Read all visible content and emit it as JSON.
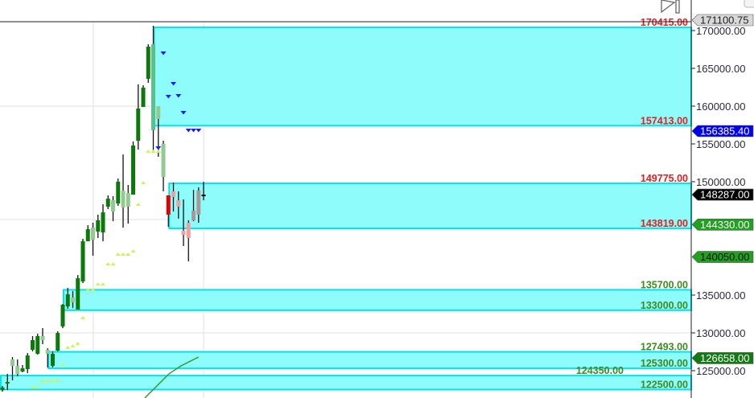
{
  "chart_data": {
    "type": "candlestick",
    "title": "",
    "xlabel": "",
    "ylabel": "",
    "ylim": [
      121000,
      172000
    ],
    "grid": true,
    "y_ticks": [
      "170000.00",
      "165000.00",
      "160000.00",
      "155000.00",
      "150000.00",
      "135000.00",
      "130000.00",
      "125000.00"
    ],
    "y_tick_values": [
      170000,
      165000,
      160000,
      155000,
      150000,
      135000,
      130000,
      125000
    ],
    "grid_y_values": [
      160000,
      145000,
      130000
    ],
    "candles": [
      {
        "o": 122440,
        "h": 122970,
        "l": 122230,
        "c": 122760,
        "color": "up"
      },
      {
        "o": 123290,
        "h": 124570,
        "l": 122440,
        "c": 123500,
        "color": "up"
      },
      {
        "o": 126480,
        "h": 126800,
        "l": 123720,
        "c": 125630,
        "color": "light"
      },
      {
        "o": 125630,
        "h": 126480,
        "l": 124250,
        "c": 124570,
        "color": "light"
      },
      {
        "o": 124890,
        "h": 125740,
        "l": 124780,
        "c": 125310,
        "color": "up"
      },
      {
        "o": 125210,
        "h": 127330,
        "l": 124670,
        "c": 127010,
        "color": "up"
      },
      {
        "o": 127760,
        "h": 129570,
        "l": 127550,
        "c": 129040,
        "color": "up"
      },
      {
        "o": 127230,
        "h": 129890,
        "l": 127120,
        "c": 129570,
        "color": "up"
      },
      {
        "o": 129570,
        "h": 130630,
        "l": 128500,
        "c": 129040,
        "color": "light"
      },
      {
        "o": 127760,
        "h": 127970,
        "l": 125420,
        "c": 127230,
        "color": "light"
      },
      {
        "o": 125630,
        "h": 127550,
        "l": 125420,
        "c": 127230,
        "color": "up"
      },
      {
        "o": 127650,
        "h": 130210,
        "l": 127550,
        "c": 129990,
        "color": "up"
      },
      {
        "o": 130850,
        "h": 133820,
        "l": 130630,
        "c": 133720,
        "color": "up"
      },
      {
        "o": 133500,
        "h": 135950,
        "l": 133190,
        "c": 135100,
        "color": "up"
      },
      {
        "o": 134680,
        "h": 135530,
        "l": 133290,
        "c": 134040,
        "color": "light"
      },
      {
        "o": 133080,
        "h": 137650,
        "l": 133080,
        "c": 137230,
        "color": "up"
      },
      {
        "o": 136800,
        "h": 142440,
        "l": 136590,
        "c": 142120,
        "color": "up"
      },
      {
        "o": 142120,
        "h": 144250,
        "l": 142120,
        "c": 143720,
        "color": "up"
      },
      {
        "o": 143930,
        "h": 144570,
        "l": 140210,
        "c": 142340,
        "color": "light"
      },
      {
        "o": 143400,
        "h": 145640,
        "l": 142550,
        "c": 144890,
        "color": "up"
      },
      {
        "o": 143290,
        "h": 147020,
        "l": 142120,
        "c": 145950,
        "color": "up"
      },
      {
        "o": 146700,
        "h": 148190,
        "l": 146380,
        "c": 147760,
        "color": "up"
      },
      {
        "o": 147550,
        "h": 148080,
        "l": 144780,
        "c": 146060,
        "color": "light"
      },
      {
        "o": 147120,
        "h": 150420,
        "l": 146800,
        "c": 150000,
        "color": "up"
      },
      {
        "o": 148830,
        "h": 153610,
        "l": 143930,
        "c": 146590,
        "color": "light"
      },
      {
        "o": 148510,
        "h": 149570,
        "l": 144460,
        "c": 146700,
        "color": "light"
      },
      {
        "o": 148290,
        "h": 155320,
        "l": 148290,
        "c": 154790,
        "color": "up"
      },
      {
        "o": 155420,
        "h": 162870,
        "l": 154250,
        "c": 159680,
        "color": "up"
      },
      {
        "o": 159890,
        "h": 162770,
        "l": 159890,
        "c": 162450,
        "color": "up"
      },
      {
        "o": 163620,
        "h": 168190,
        "l": 163080,
        "c": 167870,
        "color": "up"
      },
      {
        "o": 168190,
        "h": 170640,
        "l": 154150,
        "c": 156810,
        "color": "mid"
      },
      {
        "o": 160000,
        "h": 160000,
        "l": 153300,
        "c": 158300,
        "color": "light"
      },
      {
        "o": 155000,
        "h": 155420,
        "l": 148720,
        "c": 150640,
        "color": "light"
      },
      {
        "o": 148190,
        "h": 148190,
        "l": 144040,
        "c": 145640,
        "color": "red"
      },
      {
        "o": 148720,
        "h": 149890,
        "l": 146060,
        "c": 147980,
        "color": "pink"
      },
      {
        "o": 147550,
        "h": 148720,
        "l": 145100,
        "c": 146700,
        "color": "pink"
      },
      {
        "o": 143510,
        "h": 147660,
        "l": 141490,
        "c": 142970,
        "color": "pink"
      },
      {
        "o": 144570,
        "h": 144890,
        "l": 139460,
        "c": 142550,
        "color": "pink"
      },
      {
        "o": 144890,
        "h": 148930,
        "l": 144780,
        "c": 146170,
        "color": "gray"
      },
      {
        "o": 145640,
        "h": 149250,
        "l": 144570,
        "c": 148830,
        "color": "gray"
      },
      {
        "o": 148190,
        "h": 150000,
        "l": 147550,
        "c": 148290,
        "color": "black"
      }
    ],
    "candle_colors": {
      "up": "#0b7a0b",
      "light": "#94c994",
      "mid": "#5cc08c",
      "red": "#e00000",
      "pink": "#f0a0a0",
      "gray": "#a89898",
      "black": "#000000",
      "wick": "#111111"
    },
    "up_markers": [
      {
        "i": 6,
        "p": 122860
      },
      {
        "i": 7,
        "p": 122860
      },
      {
        "i": 8,
        "p": 123720
      },
      {
        "i": 9,
        "p": 123720
      },
      {
        "i": 10,
        "p": 123720
      },
      {
        "i": 11,
        "p": 123720
      },
      {
        "i": 12,
        "p": 125840
      },
      {
        "i": 13,
        "p": 128080
      },
      {
        "i": 14,
        "p": 128290
      },
      {
        "i": 15,
        "p": 128610
      },
      {
        "i": 16,
        "p": 132020
      },
      {
        "i": 17,
        "p": 135740
      },
      {
        "i": 18,
        "p": 135740
      },
      {
        "i": 19,
        "p": 136480
      },
      {
        "i": 20,
        "p": 136480
      },
      {
        "i": 21,
        "p": 139140
      },
      {
        "i": 22,
        "p": 139140
      },
      {
        "i": 23,
        "p": 140420
      },
      {
        "i": 24,
        "p": 140420
      },
      {
        "i": 25,
        "p": 140420
      },
      {
        "i": 26,
        "p": 140850
      },
      {
        "i": 27,
        "p": 147020
      },
      {
        "i": 28,
        "p": 149890
      },
      {
        "i": 29,
        "p": 154040
      },
      {
        "i": 30,
        "p": 154040
      },
      {
        "i": 31,
        "p": 154040
      }
    ],
    "down_markers": [
      {
        "i": 31,
        "p": 154470
      },
      {
        "i": 32,
        "p": 167020
      },
      {
        "i": 33,
        "p": 161280
      },
      {
        "i": 34,
        "p": 162980
      },
      {
        "i": 35,
        "p": 161380
      },
      {
        "i": 36,
        "p": 159150
      },
      {
        "i": 37,
        "p": 156810
      },
      {
        "i": 38,
        "p": 156810
      },
      {
        "i": 39,
        "p": 156810
      }
    ],
    "marker_colors": {
      "up": "#c8f55a",
      "down": "#1a1aff"
    },
    "moving_average": {
      "color": "#3a9a3a",
      "points": [
        [
          28.3,
          121380
        ],
        [
          30.7,
          122970
        ],
        [
          33.1,
          124570
        ],
        [
          35.5,
          125630
        ],
        [
          37.1,
          126160
        ],
        [
          39.0,
          126800
        ]
      ]
    },
    "zones": [
      {
        "start_index": 30.0,
        "top": 170415,
        "bottom": 157413,
        "top_label": "170415.00",
        "bottom_label": "157413.00",
        "label_color": "#e02020"
      },
      {
        "start_index": 33.0,
        "top": 149775,
        "bottom": 143819,
        "top_label": "149775.00",
        "bottom_label": "143819.00",
        "label_color": "#e02020"
      },
      {
        "start_index": 12.0,
        "top": 135700,
        "bottom": 133000,
        "top_label": "135700.00",
        "bottom_label": "133000.00",
        "label_color": "#3d8a1e"
      },
      {
        "start_index": 9.0,
        "top": 127493,
        "bottom": 125300,
        "top_label": "127493.00",
        "bottom_label": "125300.00",
        "label_color": "#3d8a1e"
      },
      {
        "start_index": -0.5,
        "top": 124350,
        "bottom": 122500,
        "top_label": "124350.00",
        "bottom_label": "122500.00",
        "label_color": "#3d8a1e"
      }
    ],
    "zone_colors": {
      "fill": "#8ffcfc",
      "stroke": "#00e3ee"
    },
    "price_tags": [
      {
        "label": "171100.75",
        "p": 171100.75,
        "bg": "#d8d8d8",
        "fg": "#222222"
      },
      {
        "label": "156385.40",
        "p": 156385.4,
        "bg": "#0000ee",
        "fg": "#ffffff"
      },
      {
        "label": "148287.00",
        "p": 148287.0,
        "bg": "#000000",
        "fg": "#ffffff"
      },
      {
        "label": "144330.00",
        "p": 144330.0,
        "bg": "#22a022",
        "fg": "#ffffff"
      },
      {
        "label": "140050.00",
        "p": 140050.0,
        "bg": "#22a022",
        "fg": "#111111"
      },
      {
        "label": "126658.00",
        "p": 126658.0,
        "bg": "#137a13",
        "fg": "#ffffff"
      }
    ]
  },
  "toolbar": {
    "scroll_to_end_icon": "skip-to-end-icon"
  }
}
